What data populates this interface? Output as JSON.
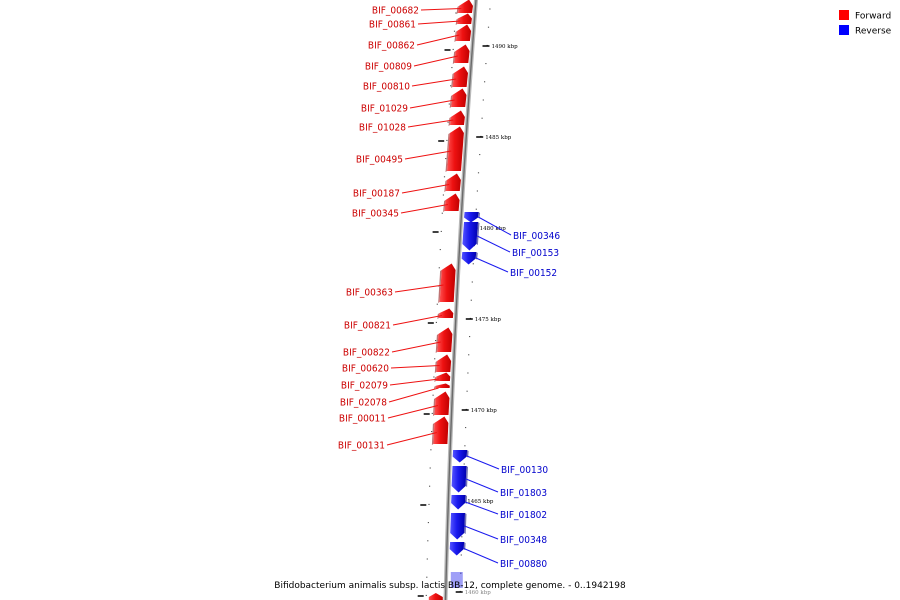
{
  "caption": "Bifidobacterium animalis subsp. lactis BB-12, complete genome. - 0..1942198",
  "legend": [
    {
      "label": "Forward",
      "color": "#ff0000"
    },
    {
      "label": "Reverse",
      "color": "#0000ff"
    }
  ],
  "colors": {
    "forward": "#ee1111",
    "reverse": "#1a1aee",
    "backbone": "#888888"
  },
  "ticks": [
    {
      "label": "1490 kbp"
    },
    {
      "label": "1485 kbp"
    },
    {
      "label": "1480 kbp"
    },
    {
      "label": "1475 kbp"
    },
    {
      "label": "1470 kbp"
    },
    {
      "label": "1465 kbp"
    },
    {
      "label": "1460 kbp"
    }
  ],
  "forward_genes": [
    {
      "label": "BIF_00682"
    },
    {
      "label": "BIF_00861"
    },
    {
      "label": "BIF_00862"
    },
    {
      "label": "BIF_00809"
    },
    {
      "label": "BIF_00810"
    },
    {
      "label": "BIF_01029"
    },
    {
      "label": "BIF_01028"
    },
    {
      "label": "BIF_00495"
    },
    {
      "label": "BIF_00187"
    },
    {
      "label": "BIF_00345"
    },
    {
      "label": "BIF_00363"
    },
    {
      "label": "BIF_00821"
    },
    {
      "label": "BIF_00822"
    },
    {
      "label": "BIF_00620"
    },
    {
      "label": "BIF_02079"
    },
    {
      "label": "BIF_02078"
    },
    {
      "label": "BIF_00011"
    },
    {
      "label": "BIF_00131"
    }
  ],
  "reverse_genes": [
    {
      "label": "BIF_00346"
    },
    {
      "label": "BIF_00153"
    },
    {
      "label": "BIF_00152"
    },
    {
      "label": "BIF_00130"
    },
    {
      "label": "BIF_01803"
    },
    {
      "label": "BIF_01802"
    },
    {
      "label": "BIF_00348"
    },
    {
      "label": "BIF_00880"
    }
  ]
}
